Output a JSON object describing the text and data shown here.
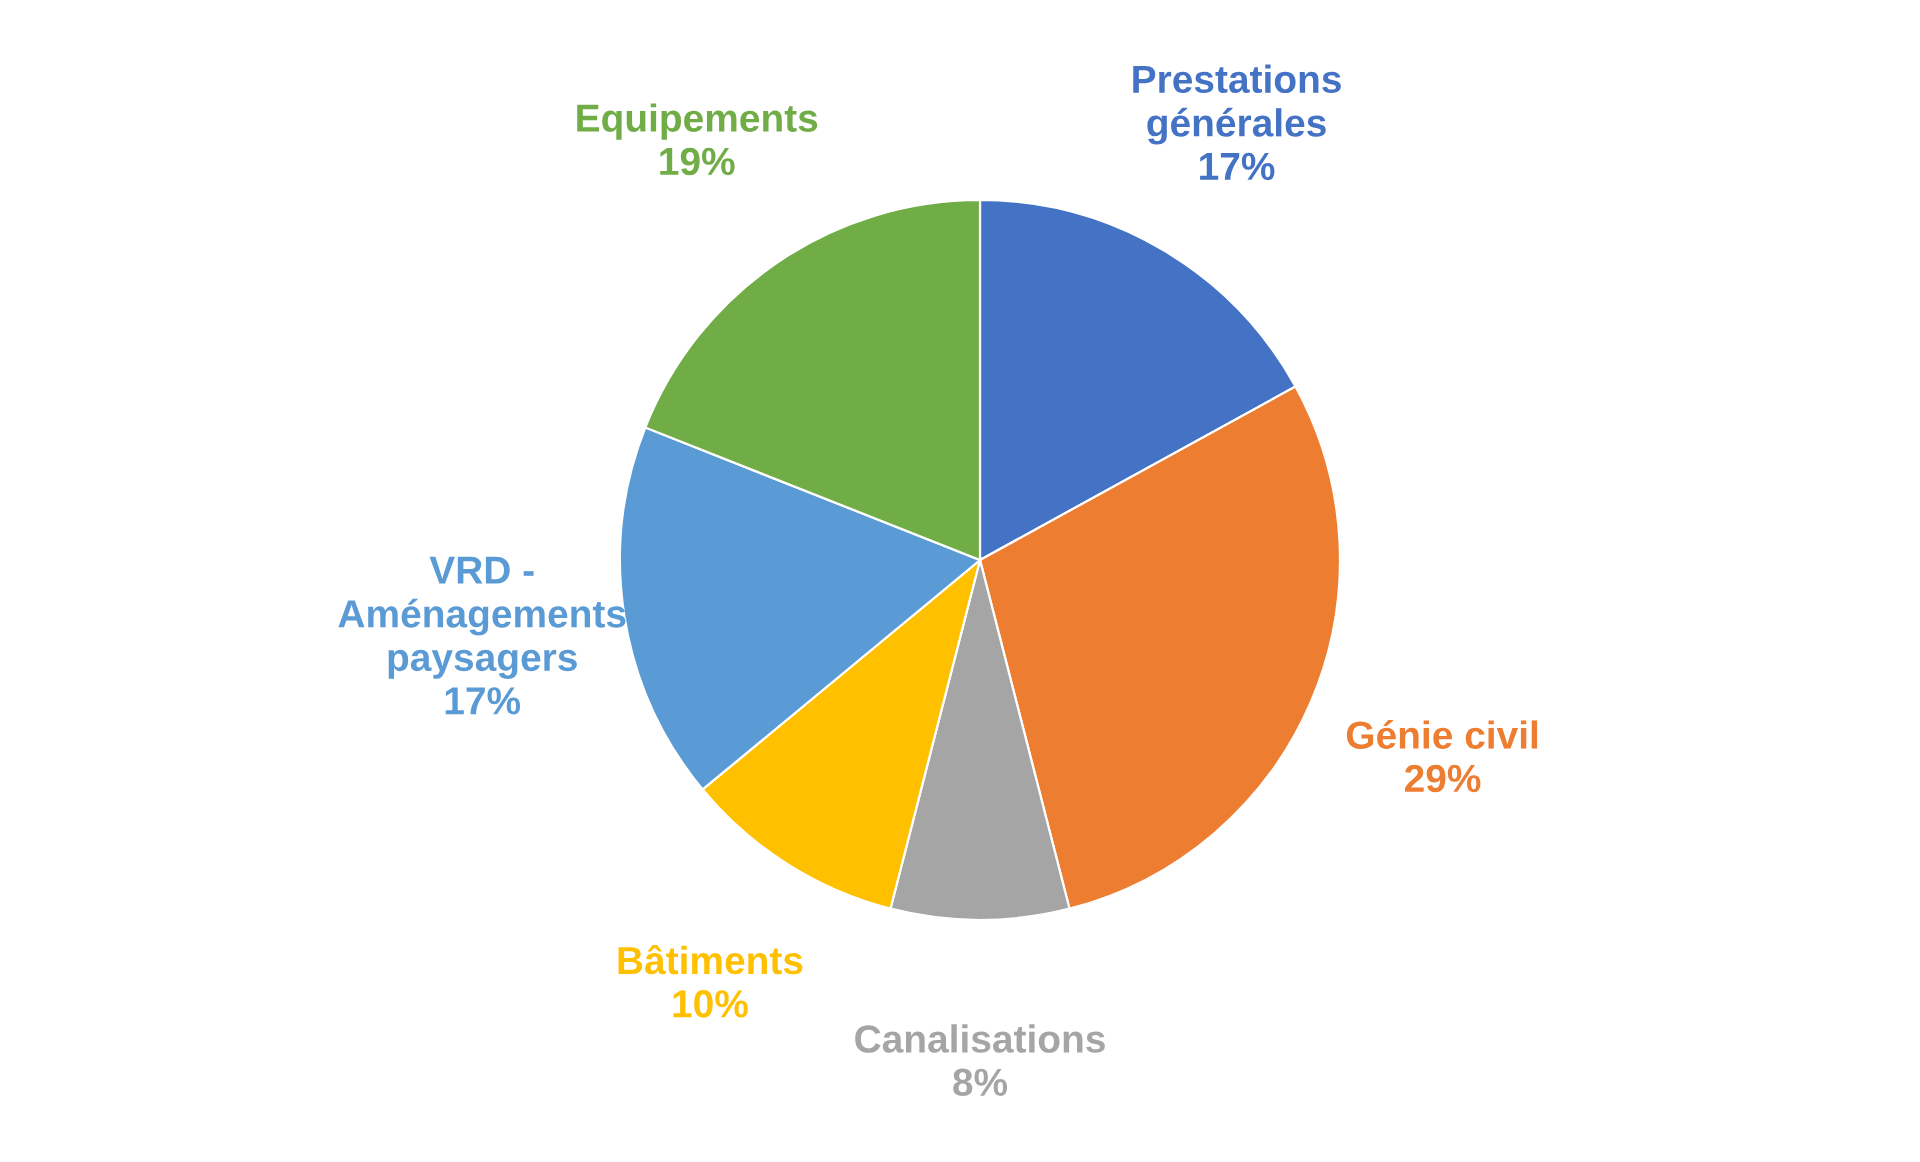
{
  "chart_data": {
    "type": "pie",
    "categories": [
      "Prestations générales",
      "Génie civil",
      "Canalisations",
      "Bâtiments",
      "VRD - Aménagements paysagers",
      "Equipements"
    ],
    "values": [
      17,
      29,
      8,
      10,
      17,
      19
    ],
    "colors": [
      "#4472c4",
      "#ed7d31",
      "#a5a5a5",
      "#ffc000",
      "#5b9bd5",
      "#70ad47"
    ],
    "value_labels": [
      "17%",
      "29%",
      "8%",
      "10%",
      "17%",
      "19%"
    ]
  }
}
